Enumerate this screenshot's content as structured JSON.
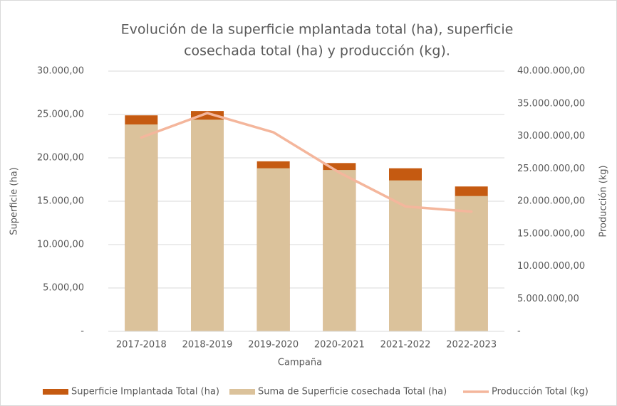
{
  "chart_data": {
    "type": "bar",
    "title": [
      "Evolución de la superficie mplantada total (ha),  superficie",
      "cosechada total (ha) y  producción (kg)."
    ],
    "x_label": "Campaña",
    "y_label": "Superficie (ha)",
    "y2_label": "Producción (kg)",
    "categories": [
      "2017-2018",
      "2018-2019",
      "2019-2020",
      "2020-2021",
      "2021-2022",
      "2022-2023"
    ],
    "series": [
      {
        "name": "Superficie Implantada Total (ha)",
        "type": "bar",
        "color": "#c55a11",
        "values": [
          24900,
          25400,
          19600,
          19400,
          18800,
          16700
        ]
      },
      {
        "name": "Suma de Superficie cosechada Total (ha)",
        "type": "bar",
        "color": "#dbc29b",
        "values": [
          23850,
          24400,
          18800,
          18600,
          17400,
          15600
        ]
      },
      {
        "name": "Producción Total (kg)",
        "type": "line",
        "axis": "y2",
        "color": "#f4b69c",
        "values": [
          29800000,
          33550000,
          30600000,
          24400000,
          19200000,
          18400000
        ]
      }
    ],
    "ylim": [
      0,
      30000
    ],
    "yticks": [
      {
        "value": 0,
        "label": "-"
      },
      {
        "value": 5000,
        "label": "5.000,00"
      },
      {
        "value": 10000,
        "label": "10.000,00"
      },
      {
        "value": 15000,
        "label": "15.000,00"
      },
      {
        "value": 20000,
        "label": "20.000,00"
      },
      {
        "value": 25000,
        "label": "25.000,00"
      },
      {
        "value": 30000,
        "label": "30.000,00"
      }
    ],
    "y2lim": [
      0,
      40000000
    ],
    "y2ticks": [
      {
        "value": 0,
        "label": "-"
      },
      {
        "value": 5000000,
        "label": "5.000.000,00"
      },
      {
        "value": 10000000,
        "label": "10.000.000,00"
      },
      {
        "value": 15000000,
        "label": "15.000.000,00"
      },
      {
        "value": 20000000,
        "label": "20.000.000,00"
      },
      {
        "value": 25000000,
        "label": "25.000.000,00"
      },
      {
        "value": 30000000,
        "label": "30.000.000,00"
      },
      {
        "value": 35000000,
        "label": "35.000.000,00"
      },
      {
        "value": 40000000,
        "label": "40.000.000,00"
      }
    ],
    "grid": true,
    "legend": "bottom"
  }
}
